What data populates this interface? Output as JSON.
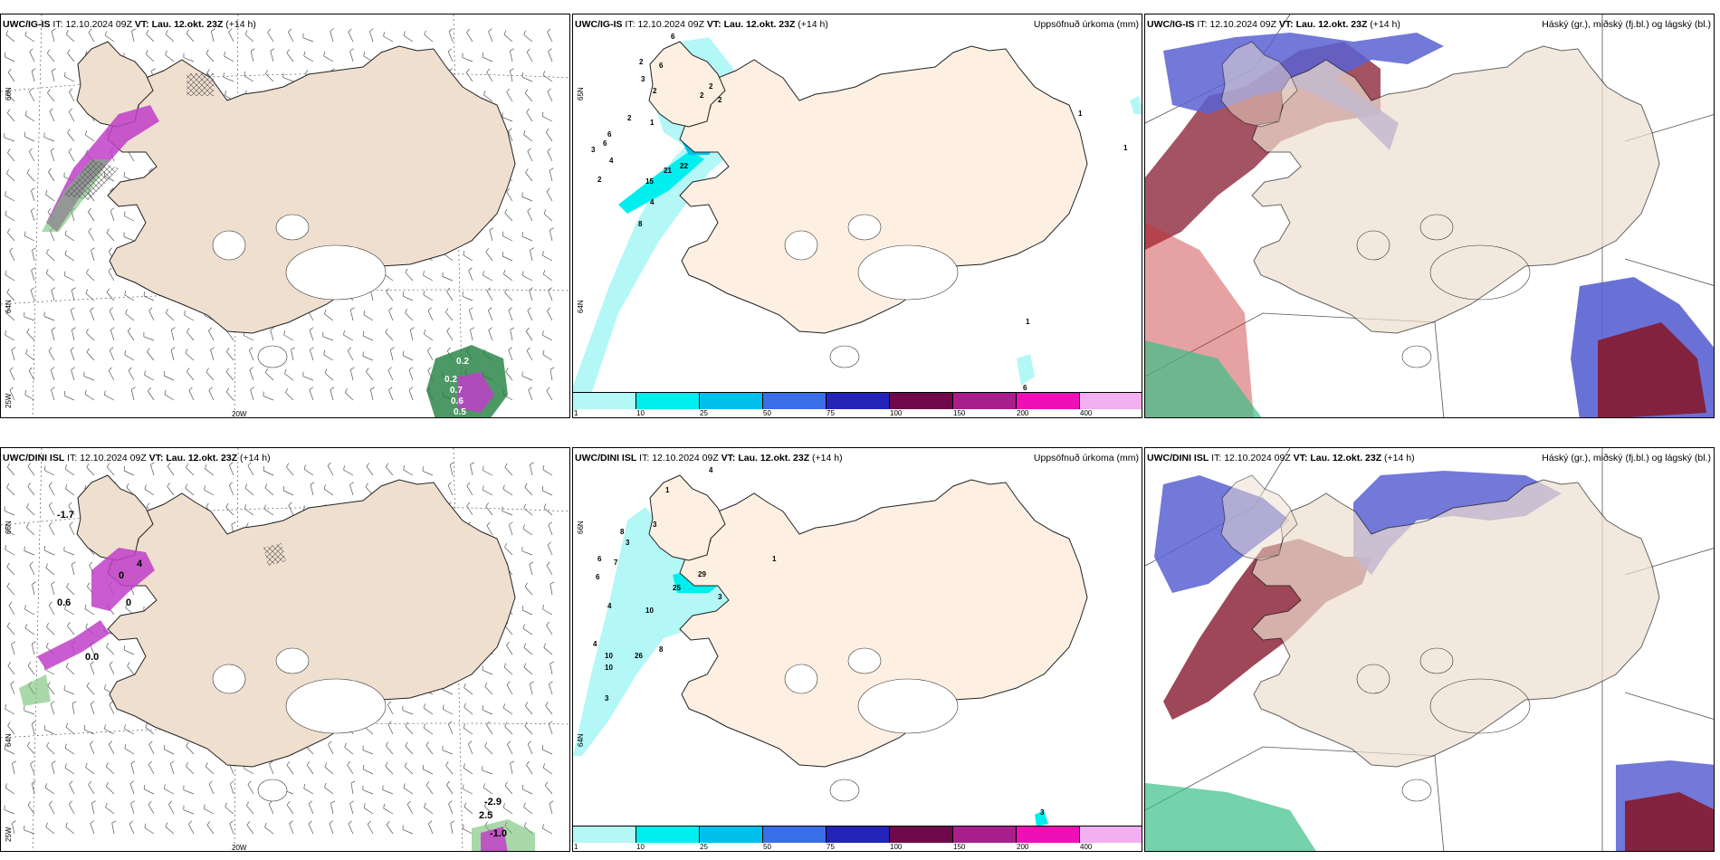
{
  "colors": {
    "land": "#efdfcf",
    "land_light": "#fdf0e2",
    "precip_scale": [
      "#b3f7f7",
      "#00eeee",
      "#00c0ee",
      "#3a6ee8",
      "#2424b8",
      "#6e0a4a",
      "#a81f8c",
      "#ee10b4",
      "#f2b0f0"
    ],
    "cloud_high": "#5a62d2",
    "cloud_mid": "#86192e",
    "cloud_low": "#3bbf88",
    "wind_precip": "#c040c8",
    "wind_green": "#60c060"
  },
  "panels": [
    {
      "id": "ig-wind",
      "model": "UWC/IG-IS",
      "it_label": "IT:",
      "it": "12.10.2024 09Z",
      "vt_label": "VT:",
      "vt": "Lau. 12.okt. 23Z",
      "lead": "(+14 h)",
      "right_title": "",
      "lat_labels": [
        "66N",
        "64N",
        "25W"
      ],
      "lon_labels": [
        "20W"
      ],
      "values": [
        "0.2",
        "0.2",
        "0.7",
        "0.6",
        "0.5"
      ]
    },
    {
      "id": "ig-precip",
      "model": "UWC/IG-IS",
      "it_label": "IT:",
      "it": "12.10.2024 09Z",
      "vt_label": "VT:",
      "vt": "Lau. 12.okt. 23Z",
      "lead": "(+14 h)",
      "right_title": "Uppsöfnuð úrkoma (mm)",
      "lat_labels": [
        "65N",
        "64N"
      ],
      "legend_ticks": [
        "1",
        "10",
        "25",
        "50",
        "75",
        "100",
        "150",
        "200",
        "400"
      ],
      "values": [
        "6",
        "2",
        "6",
        "3",
        "2",
        "2",
        "2",
        "2",
        "2",
        "1",
        "6",
        "3",
        "6",
        "4",
        "2",
        "21",
        "15",
        "22",
        "4",
        "8",
        "1",
        "1",
        "1",
        "6"
      ]
    },
    {
      "id": "ig-cloud",
      "model": "UWC/IG-IS",
      "it_label": "IT:",
      "it": "12.10.2024 09Z",
      "vt_label": "VT:",
      "vt": "Lau. 12.okt. 23Z",
      "lead": "(+14 h)",
      "right_title": "Háský (gr.), miðský (fj.bl.) og lágský (bl.)"
    },
    {
      "id": "dini-wind",
      "model": "UWC/DINI ISL",
      "it_label": "IT:",
      "it": "12.10.2024 09Z",
      "vt_label": "VT:",
      "vt": "Lau. 12.okt. 23Z",
      "lead": "(+14 h)",
      "right_title": "",
      "lat_labels": [
        "66N",
        "64N",
        "25W"
      ],
      "lon_labels": [
        "20W"
      ],
      "values": [
        "-1.7",
        "0.6",
        "4",
        "0",
        "0",
        "0.0",
        "-2.9",
        "2.5",
        "-1.0"
      ]
    },
    {
      "id": "dini-precip",
      "model": "UWC/DINI ISL",
      "it_label": "IT:",
      "it": "12.10.2024 09Z",
      "vt_label": "VT:",
      "vt": "Lau. 12.okt. 23Z",
      "lead": "(+14 h)",
      "right_title": "Uppsöfnuð úrkoma (mm)",
      "lat_labels": [
        "66N",
        "64N"
      ],
      "legend_ticks": [
        "1",
        "10",
        "25",
        "50",
        "75",
        "100",
        "150",
        "200",
        "400"
      ],
      "values": [
        "4",
        "1",
        "8",
        "3",
        "3",
        "6",
        "7",
        "6",
        "4",
        "25",
        "29",
        "3",
        "10",
        "4",
        "10",
        "26",
        "8",
        "10",
        "3",
        "1",
        "3"
      ]
    },
    {
      "id": "dini-cloud",
      "model": "UWC/DINI ISL",
      "it_label": "IT:",
      "it": "12.10.2024 09Z",
      "vt_label": "VT:",
      "vt": "Lau. 12.okt. 23Z",
      "lead": "(+14 h)",
      "right_title": "Háský (gr.), miðský (fj.bl.) og lágský (bl.)"
    }
  ]
}
